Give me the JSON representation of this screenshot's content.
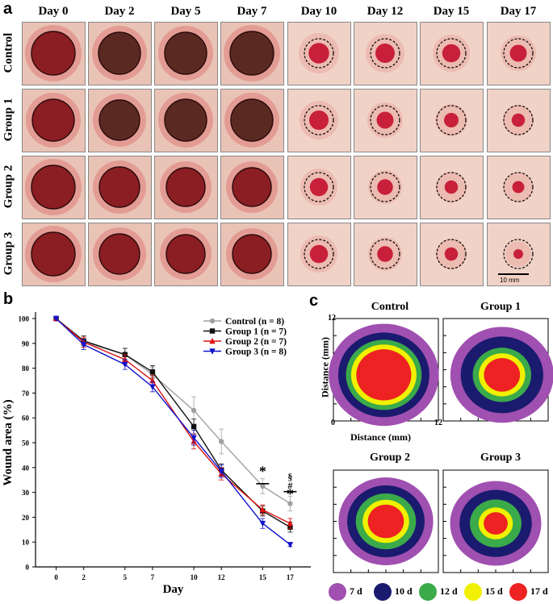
{
  "panel_a": {
    "letter": "a",
    "days": [
      "Day 0",
      "Day 2",
      "Day 5",
      "Day 7",
      "Day 10",
      "Day 12",
      "Day 15",
      "Day 17"
    ],
    "groups": [
      "Control",
      "Group 1",
      "Group 2",
      "Group 3"
    ],
    "scale_bar": "10 mm"
  },
  "panel_b": {
    "letter": "b",
    "significance": {
      "day15": "*",
      "day17_sec": "§",
      "day17_hash": "#",
      "day17_star": "*"
    }
  },
  "panel_c": {
    "letter": "c",
    "titles": [
      "Control",
      "Group 1",
      "Group 2",
      "Group 3"
    ],
    "axis_max": "12",
    "axis_min": "0",
    "xlabel": "Distance (mm)",
    "ylabel": "Distance (mm)",
    "legend": [
      {
        "label": "7 d",
        "color": "#a050b0"
      },
      {
        "label": "10 d",
        "color": "#1a1a6e"
      },
      {
        "label": "12 d",
        "color": "#3aaa4a"
      },
      {
        "label": "15 d",
        "color": "#f0f000"
      },
      {
        "label": "17 d",
        "color": "#ee2222"
      }
    ]
  },
  "chart_data": {
    "type": "line",
    "x": [
      0,
      2,
      5,
      7,
      10,
      12,
      15,
      17
    ],
    "series": [
      {
        "name": "Control (n = 8)",
        "color": "#a0a0a0",
        "marker": "circle",
        "values": [
          100,
          90.5,
          85.5,
          77.5,
          63,
          50.5,
          32.5,
          25.5
        ],
        "errors": [
          0,
          2,
          2.5,
          3,
          5.5,
          5,
          3,
          3
        ]
      },
      {
        "name": "Group 1 (n = 7)",
        "color": "#111111",
        "marker": "square",
        "values": [
          100,
          91,
          85.5,
          78.5,
          56.5,
          39,
          22.5,
          16
        ],
        "errors": [
          0,
          2,
          2.5,
          2.5,
          3,
          2.5,
          2,
          2
        ]
      },
      {
        "name": "Group 2 (n = 7)",
        "color": "#dd1111",
        "marker": "triangle-up",
        "values": [
          100,
          90.5,
          83.5,
          75,
          50.5,
          37.5,
          23,
          17.5
        ],
        "errors": [
          0,
          2,
          2,
          2,
          3,
          2.5,
          2,
          2
        ]
      },
      {
        "name": "Group 3 (n = 8)",
        "color": "#1111cc",
        "marker": "triangle-down",
        "values": [
          100,
          89.5,
          81.5,
          72.5,
          52,
          38.5,
          17.5,
          9
        ],
        "errors": [
          0,
          2,
          2,
          2,
          3,
          2.5,
          2,
          0.8
        ]
      }
    ],
    "title": "",
    "xlabel": "Day",
    "ylabel": "Wound area (%)",
    "ylim": [
      0,
      100
    ],
    "yticks": [
      0,
      10,
      20,
      30,
      40,
      50,
      60,
      70,
      80,
      90,
      100
    ],
    "xticks": [
      0,
      2,
      5,
      7,
      10,
      12,
      15,
      17
    ],
    "legend_position": "top-right"
  }
}
